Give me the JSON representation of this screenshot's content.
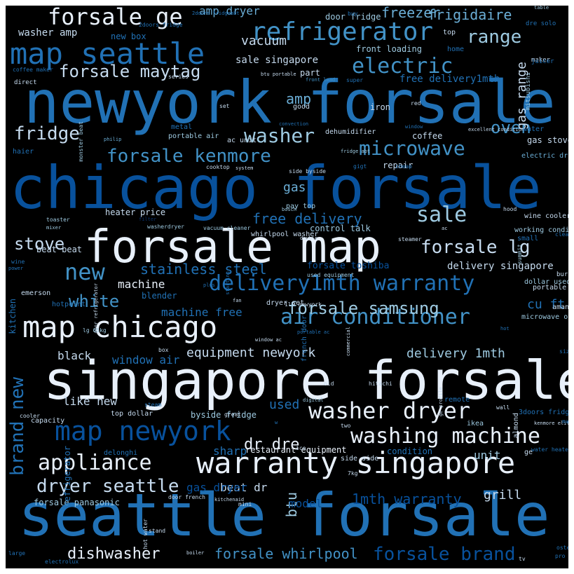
{
  "palette": {
    "background": "#000000",
    "c1": "#e8f0fa",
    "c2": "#c6dbef",
    "c3": "#9ecae1",
    "c4": "#6baed6",
    "c5": "#4292c6",
    "c6": "#2171b5",
    "c7": "#08519c",
    "c8": "#08306b"
  },
  "words": [
    {
      "t": "newyork forsale",
      "c": "c6"
    },
    {
      "t": "chicago forsale",
      "c": "c7"
    },
    {
      "t": "seattle forsale",
      "c": "c6"
    },
    {
      "t": "singapore forsale",
      "c": "c1"
    },
    {
      "t": "forsale map",
      "c": "c1"
    },
    {
      "t": "map seattle",
      "c": "c6"
    },
    {
      "t": "refrigerator",
      "c": "c5"
    },
    {
      "t": "forsale ge",
      "c": "c1"
    },
    {
      "t": "map chicago",
      "c": "c1"
    },
    {
      "t": "warranty singapore",
      "c": "c1"
    },
    {
      "t": "delivery1mth warranty",
      "c": "c6"
    },
    {
      "t": "air conditioner",
      "c": "c5"
    },
    {
      "t": "map newyork",
      "c": "c7"
    },
    {
      "t": "washer dryer",
      "c": "c1"
    },
    {
      "t": "washing machine",
      "c": "c1"
    },
    {
      "t": "forsale samsung",
      "c": "c3"
    },
    {
      "t": "forsale kenmore",
      "c": "c5"
    },
    {
      "t": "microwave",
      "c": "c5"
    },
    {
      "t": "electric",
      "c": "c5"
    },
    {
      "t": "forsale maytag",
      "c": "c2"
    },
    {
      "t": "appliance",
      "c": "c1"
    },
    {
      "t": "dryer seattle",
      "c": "c2"
    },
    {
      "t": "forsale lg",
      "c": "c2"
    },
    {
      "t": "fridge",
      "c": "c2"
    },
    {
      "t": "washer",
      "c": "c3"
    },
    {
      "t": "oven",
      "c": "c5"
    },
    {
      "t": "range",
      "c": "c3"
    },
    {
      "t": "sale",
      "c": "c3"
    },
    {
      "t": "stove",
      "c": "c2"
    },
    {
      "t": "new",
      "c": "c5"
    },
    {
      "t": "white",
      "c": "c5"
    },
    {
      "t": "stainless steel",
      "c": "c6"
    },
    {
      "t": "free delivery",
      "c": "c6"
    },
    {
      "t": "forsale brand",
      "c": "c7"
    },
    {
      "t": "forsale whirlpool",
      "c": "c5"
    },
    {
      "t": "dishwasher",
      "c": "c1"
    },
    {
      "t": "1mth warranty",
      "c": "c7"
    },
    {
      "t": "dr dre",
      "c": "c1"
    },
    {
      "t": "delivery 1mth",
      "c": "c3"
    },
    {
      "t": "equipment newyork",
      "c": "c2"
    },
    {
      "t": "brand new",
      "c": "c6",
      "v": true
    },
    {
      "t": "btu",
      "c": "c3",
      "v": true
    },
    {
      "t": "frigidaire",
      "c": "c4"
    },
    {
      "t": "freezer",
      "c": "c4"
    },
    {
      "t": "amp",
      "c": "c4"
    },
    {
      "t": "amp dryer",
      "c": "c4"
    },
    {
      "t": "vacuum",
      "c": "c2"
    },
    {
      "t": "gas",
      "c": "c4"
    },
    {
      "t": "used",
      "c": "c6"
    },
    {
      "t": "grill",
      "c": "c2"
    },
    {
      "t": "like new",
      "c": "c2"
    },
    {
      "t": "machine",
      "c": "c1"
    },
    {
      "t": "beat dr",
      "c": "c2"
    },
    {
      "t": "unit",
      "c": "c3"
    },
    {
      "t": "sharp",
      "c": "c6"
    },
    {
      "t": "model",
      "c": "c7"
    },
    {
      "t": "gas dryer",
      "c": "c7"
    },
    {
      "t": "black",
      "c": "c2"
    },
    {
      "t": "window air",
      "c": "c6"
    },
    {
      "t": "machine free",
      "c": "c6"
    },
    {
      "t": "cu ft",
      "c": "c6"
    },
    {
      "t": "gas range",
      "c": "c2",
      "v": true
    },
    {
      "t": "washer amp",
      "c": "c2"
    },
    {
      "t": "sale singapore",
      "c": "c2"
    },
    {
      "t": "free delivery1mth",
      "c": "c6"
    },
    {
      "t": "delivery singapore",
      "c": "c2"
    },
    {
      "t": "forsale toshiba",
      "c": "c7"
    },
    {
      "t": "restaurant equipment",
      "c": "c1"
    },
    {
      "t": "forsale panasonic",
      "c": "c3"
    },
    {
      "t": "front loading",
      "c": "c3"
    },
    {
      "t": "coffee",
      "c": "c2"
    },
    {
      "t": "gas stove",
      "c": "c2"
    },
    {
      "t": "repair",
      "c": "c2"
    },
    {
      "t": "beat beat",
      "c": "c2"
    },
    {
      "t": "heater",
      "c": "c2"
    },
    {
      "t": "price",
      "c": "c2"
    },
    {
      "t": "door fridge",
      "c": "c3"
    },
    {
      "t": "buy",
      "c": "c6"
    },
    {
      "t": "new box",
      "c": "c6"
    },
    {
      "t": "iron",
      "c": "c2"
    },
    {
      "t": "part",
      "c": "c2"
    },
    {
      "t": "top",
      "c": "c2"
    },
    {
      "t": "table",
      "c": "c3"
    },
    {
      "t": "maker",
      "c": "c2"
    },
    {
      "t": "juicer",
      "c": "c6"
    },
    {
      "t": "mitsubishi",
      "c": "c3",
      "v": true
    },
    {
      "t": "dre solo",
      "c": "c6"
    },
    {
      "t": "2doors fridge",
      "c": "c6"
    },
    {
      "t": "2doors fridgeabt",
      "c": "c6"
    },
    {
      "t": "home",
      "c": "c6"
    },
    {
      "t": "coffee maker",
      "c": "c6"
    },
    {
      "t": "btu portable",
      "c": "c2"
    },
    {
      "t": "direct",
      "c": "c2"
    },
    {
      "t": "front load",
      "c": "c5"
    },
    {
      "t": "super",
      "c": "c6"
    },
    {
      "t": "red",
      "c": "c2"
    },
    {
      "t": "set",
      "c": "c2"
    },
    {
      "t": "good",
      "c": "c2"
    },
    {
      "t": "series",
      "c": "c2"
    },
    {
      "t": "monster beat",
      "c": "c3",
      "v": true
    },
    {
      "t": "convection",
      "c": "c6"
    },
    {
      "t": "metal",
      "c": "c6"
    },
    {
      "t": "portable air",
      "c": "c3"
    },
    {
      "t": "ac unit",
      "c": "c2"
    },
    {
      "t": "philip",
      "c": "c4"
    },
    {
      "t": "dehumidifier",
      "c": "c2"
    },
    {
      "t": "excellent condition",
      "c": "c2"
    },
    {
      "t": "window",
      "c": "c6"
    },
    {
      "t": "water",
      "c": "c6"
    },
    {
      "t": "electric dryer",
      "c": "c4"
    },
    {
      "t": "haier",
      "c": "c6"
    },
    {
      "t": "cooktop",
      "c": "c2"
    },
    {
      "t": "system",
      "c": "c2"
    },
    {
      "t": "fridge abt",
      "c": "c3"
    },
    {
      "t": "gigt",
      "c": "c6"
    },
    {
      "t": "cheap",
      "c": "c6"
    },
    {
      "t": "side byside",
      "c": "c2"
    },
    {
      "t": "pay top",
      "c": "c3"
    },
    {
      "t": "bosch",
      "c": "c3"
    },
    {
      "t": "hood",
      "c": "c2"
    },
    {
      "t": "wine cooler",
      "c": "c2"
    },
    {
      "t": "toaster",
      "c": "c3"
    },
    {
      "t": "filter",
      "c": "c8"
    },
    {
      "t": "mixer",
      "c": "c3"
    },
    {
      "t": "washerdryer",
      "c": "c3"
    },
    {
      "t": "vacuum cleaner",
      "c": "c3"
    },
    {
      "t": "control talk",
      "c": "c3"
    },
    {
      "t": "whirlpool washer",
      "c": "c2"
    },
    {
      "t": "ac",
      "c": "c2"
    },
    {
      "t": "working condition",
      "c": "c3"
    },
    {
      "t": "small",
      "c": "c6"
    },
    {
      "t": "clean",
      "c": "c6"
    },
    {
      "t": "double",
      "c": "c2"
    },
    {
      "t": "steamer",
      "c": "c2"
    },
    {
      "t": "summit",
      "c": "c3",
      "v": true
    },
    {
      "t": "wine",
      "c": "c6"
    },
    {
      "t": "power",
      "c": "c6"
    },
    {
      "t": "starting",
      "c": "c6",
      "v": true
    },
    {
      "t": "used equipment",
      "c": "c3"
    },
    {
      "t": "dollar used",
      "c": "c3"
    },
    {
      "t": "portable",
      "c": "c2"
    },
    {
      "t": "burner",
      "c": "c2"
    },
    {
      "t": "door refrigerator",
      "c": "c2",
      "v": true
    },
    {
      "t": "plus",
      "c": "c6"
    },
    {
      "t": "emerson",
      "c": "c2"
    },
    {
      "t": "blender",
      "c": "c6"
    },
    {
      "t": "hotpoint",
      "c": "c6"
    },
    {
      "t": "fan",
      "c": "c2"
    },
    {
      "t": "1ll newyork",
      "c": "c2"
    },
    {
      "t": "lg 65kg",
      "c": "c3"
    },
    {
      "t": "dryer set",
      "c": "c2"
    },
    {
      "t": "kitchen",
      "c": "c6",
      "v": true
    },
    {
      "t": "french door",
      "c": "c6",
      "v": true
    },
    {
      "t": "microwave oven",
      "c": "c3"
    },
    {
      "t": "amana",
      "c": "c2"
    },
    {
      "t": "commercial",
      "c": "c2",
      "v": true
    },
    {
      "t": "portable ac",
      "c": "c6"
    },
    {
      "t": "hot",
      "c": "c6"
    },
    {
      "t": "window ac",
      "c": "c2"
    },
    {
      "t": "box",
      "c": "c2"
    },
    {
      "t": "size",
      "c": "c6"
    },
    {
      "t": "old",
      "c": "c2"
    },
    {
      "t": "hitachi",
      "c": "c2"
    },
    {
      "t": "ge profile",
      "c": "c2",
      "v": true
    },
    {
      "t": "cooler",
      "c": "c2"
    },
    {
      "t": "steam",
      "c": "c6"
    },
    {
      "t": "digital",
      "c": "c3"
    },
    {
      "t": "remote",
      "c": "c6"
    },
    {
      "t": "wall",
      "c": "c2"
    },
    {
      "t": "almond",
      "c": "c2",
      "v": true
    },
    {
      "t": "capacity",
      "c": "c2"
    },
    {
      "t": "top dollar",
      "c": "c2"
    },
    {
      "t": "byside fridge",
      "c": "c3"
    },
    {
      "t": "great",
      "c": "c2"
    },
    {
      "t": "3doors fridge",
      "c": "c6"
    },
    {
      "t": "w",
      "c": "c6"
    },
    {
      "t": "two",
      "c": "c2"
    },
    {
      "t": "ikea",
      "c": "c3"
    },
    {
      "t": "kenmore elite",
      "c": "c2"
    },
    {
      "t": "matching",
      "c": "c6"
    },
    {
      "t": "refrigerator",
      "c": "c6",
      "v": true
    },
    {
      "t": "ice",
      "c": "c2"
    },
    {
      "t": "delonghi",
      "c": "c6"
    },
    {
      "t": "condition",
      "c": "c6"
    },
    {
      "t": "side side",
      "c": "c2"
    },
    {
      "t": "water heater",
      "c": "c6"
    },
    {
      "t": "ge",
      "c": "c2"
    },
    {
      "t": "7kg",
      "c": "c2"
    },
    {
      "t": "door french",
      "c": "c2"
    },
    {
      "t": "mini",
      "c": "c2"
    },
    {
      "t": "kitchenaid",
      "c": "c2"
    },
    {
      "t": "hot water",
      "c": "c2",
      "v": true
    },
    {
      "t": "stand",
      "c": "c2"
    },
    {
      "t": "boiler",
      "c": "c2"
    },
    {
      "t": "large",
      "c": "c6"
    },
    {
      "t": "electrolux",
      "c": "c6"
    },
    {
      "t": "oster",
      "c": "c6"
    },
    {
      "t": "pro",
      "c": "c6"
    },
    {
      "t": "tv",
      "c": "c2"
    },
    {
      "t": "freestanding",
      "c": "c2"
    }
  ]
}
